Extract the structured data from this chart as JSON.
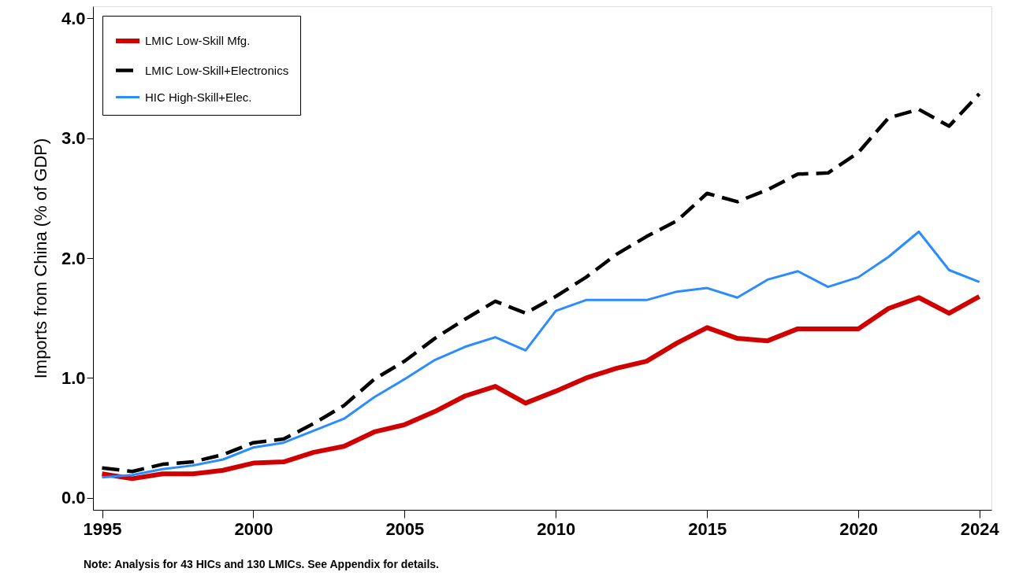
{
  "chart_data": {
    "type": "line",
    "ylabel": "Imports from China (% of GDP)",
    "x": [
      1995,
      1996,
      1997,
      1998,
      1999,
      2000,
      2001,
      2002,
      2003,
      2004,
      2005,
      2006,
      2007,
      2008,
      2009,
      2010,
      2011,
      2012,
      2013,
      2014,
      2015,
      2016,
      2017,
      2018,
      2019,
      2020,
      2021,
      2022,
      2023,
      2024
    ],
    "series": [
      {
        "name": "LMIC Low-Skill Mfg.",
        "color": "#d00000",
        "line_style": "solid",
        "values": [
          0.2,
          0.16,
          0.2,
          0.2,
          0.23,
          0.29,
          0.3,
          0.38,
          0.43,
          0.55,
          0.61,
          0.72,
          0.85,
          0.93,
          0.79,
          0.89,
          1.0,
          1.08,
          1.14,
          1.29,
          1.42,
          1.33,
          1.31,
          1.41,
          1.41,
          1.41,
          1.58,
          1.67,
          1.54,
          1.68
        ]
      },
      {
        "name": "LMIC Low-Skill+Electronics",
        "color": "#000000",
        "line_style": "dashed",
        "values": [
          0.25,
          0.22,
          0.28,
          0.3,
          0.36,
          0.46,
          0.49,
          0.62,
          0.77,
          0.99,
          1.14,
          1.33,
          1.49,
          1.64,
          1.54,
          1.68,
          1.84,
          2.03,
          2.18,
          2.31,
          2.54,
          2.47,
          2.57,
          2.7,
          2.71,
          2.88,
          3.17,
          3.24,
          3.1,
          3.37
        ]
      },
      {
        "name": "HIC High-Skill+Elec.",
        "color": "#2b8cff",
        "line_style": "solid",
        "values": [
          0.17,
          0.19,
          0.24,
          0.27,
          0.32,
          0.42,
          0.46,
          0.56,
          0.66,
          0.84,
          0.99,
          1.15,
          1.26,
          1.34,
          1.23,
          1.56,
          1.65,
          1.65,
          1.65,
          1.72,
          1.75,
          1.67,
          1.82,
          1.89,
          1.76,
          1.84,
          2.01,
          2.22,
          1.9,
          1.8
        ]
      }
    ],
    "xlim": [
      1994.7,
      2024.4
    ],
    "xticks": [
      1995,
      2000,
      2005,
      2010,
      2015,
      2020,
      2024
    ],
    "ylim": [
      -0.1,
      4.1
    ],
    "yticks": [
      {
        "value": 0,
        "label": "0.0"
      },
      {
        "value": 1,
        "label": "1.0"
      },
      {
        "value": 2,
        "label": "2.0"
      },
      {
        "value": 3,
        "label": "3.0"
      },
      {
        "value": 4,
        "label": "4.0"
      }
    ],
    "grid": false,
    "legend": "top left",
    "marker": "none",
    "annotations": [
      "Note: Analysis for 43 HICs and 130 LMICs. See Appendix for details."
    ]
  }
}
